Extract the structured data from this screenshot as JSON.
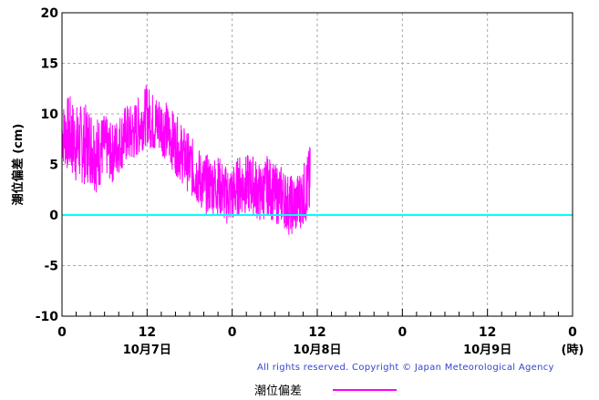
{
  "chart_data": {
    "type": "line",
    "ylabel": "潮位偏差 (cm)",
    "ylim": [
      -10,
      20
    ],
    "yticks": [
      "20",
      "15",
      "10",
      "5",
      "0",
      "-5",
      "-10"
    ],
    "xlim_hours": [
      0,
      72
    ],
    "xticks": [
      "0",
      "12",
      "0",
      "12",
      "0",
      "12",
      "0"
    ],
    "date_labels": [
      "10月7日",
      "10月8日",
      "10月9日"
    ],
    "x_unit_label": "(時)",
    "grid": true,
    "legend_position": "bottom-center",
    "series": [
      {
        "name": "潮位偏差",
        "color": "#ff00ff",
        "hours": [
          0,
          1,
          2,
          3,
          4,
          5,
          6,
          7,
          8,
          9,
          10,
          11,
          12,
          13,
          14,
          15,
          16,
          17,
          18,
          19,
          20,
          21,
          22,
          23,
          24,
          25,
          26,
          27,
          28,
          29,
          30,
          31,
          32,
          33,
          34,
          35
        ],
        "center": [
          8,
          8,
          7,
          7,
          7,
          6,
          7,
          6,
          7,
          8,
          8,
          9,
          10,
          9,
          9,
          8,
          7,
          6,
          5,
          4,
          3,
          3,
          3,
          2,
          2,
          3,
          3,
          3,
          2,
          3,
          2,
          2,
          1,
          1,
          2,
          3
        ],
        "amplitude": [
          3,
          4,
          4,
          4,
          4,
          4,
          3,
          3,
          3,
          3,
          3,
          3,
          3,
          3,
          3,
          3,
          3,
          3,
          3,
          3,
          3,
          3,
          3,
          3,
          3,
          3,
          3,
          3,
          3,
          3,
          3,
          3,
          3,
          3,
          3,
          4
        ]
      },
      {
        "name": "",
        "color": "#00ffff",
        "hours": [
          0,
          72
        ],
        "values": [
          0,
          0
        ]
      }
    ]
  },
  "copyright": "All rights reserved. Copyright © Japan Meteorological Agency",
  "legend": {
    "label": "潮位偏差",
    "color": "#ff00ff"
  }
}
